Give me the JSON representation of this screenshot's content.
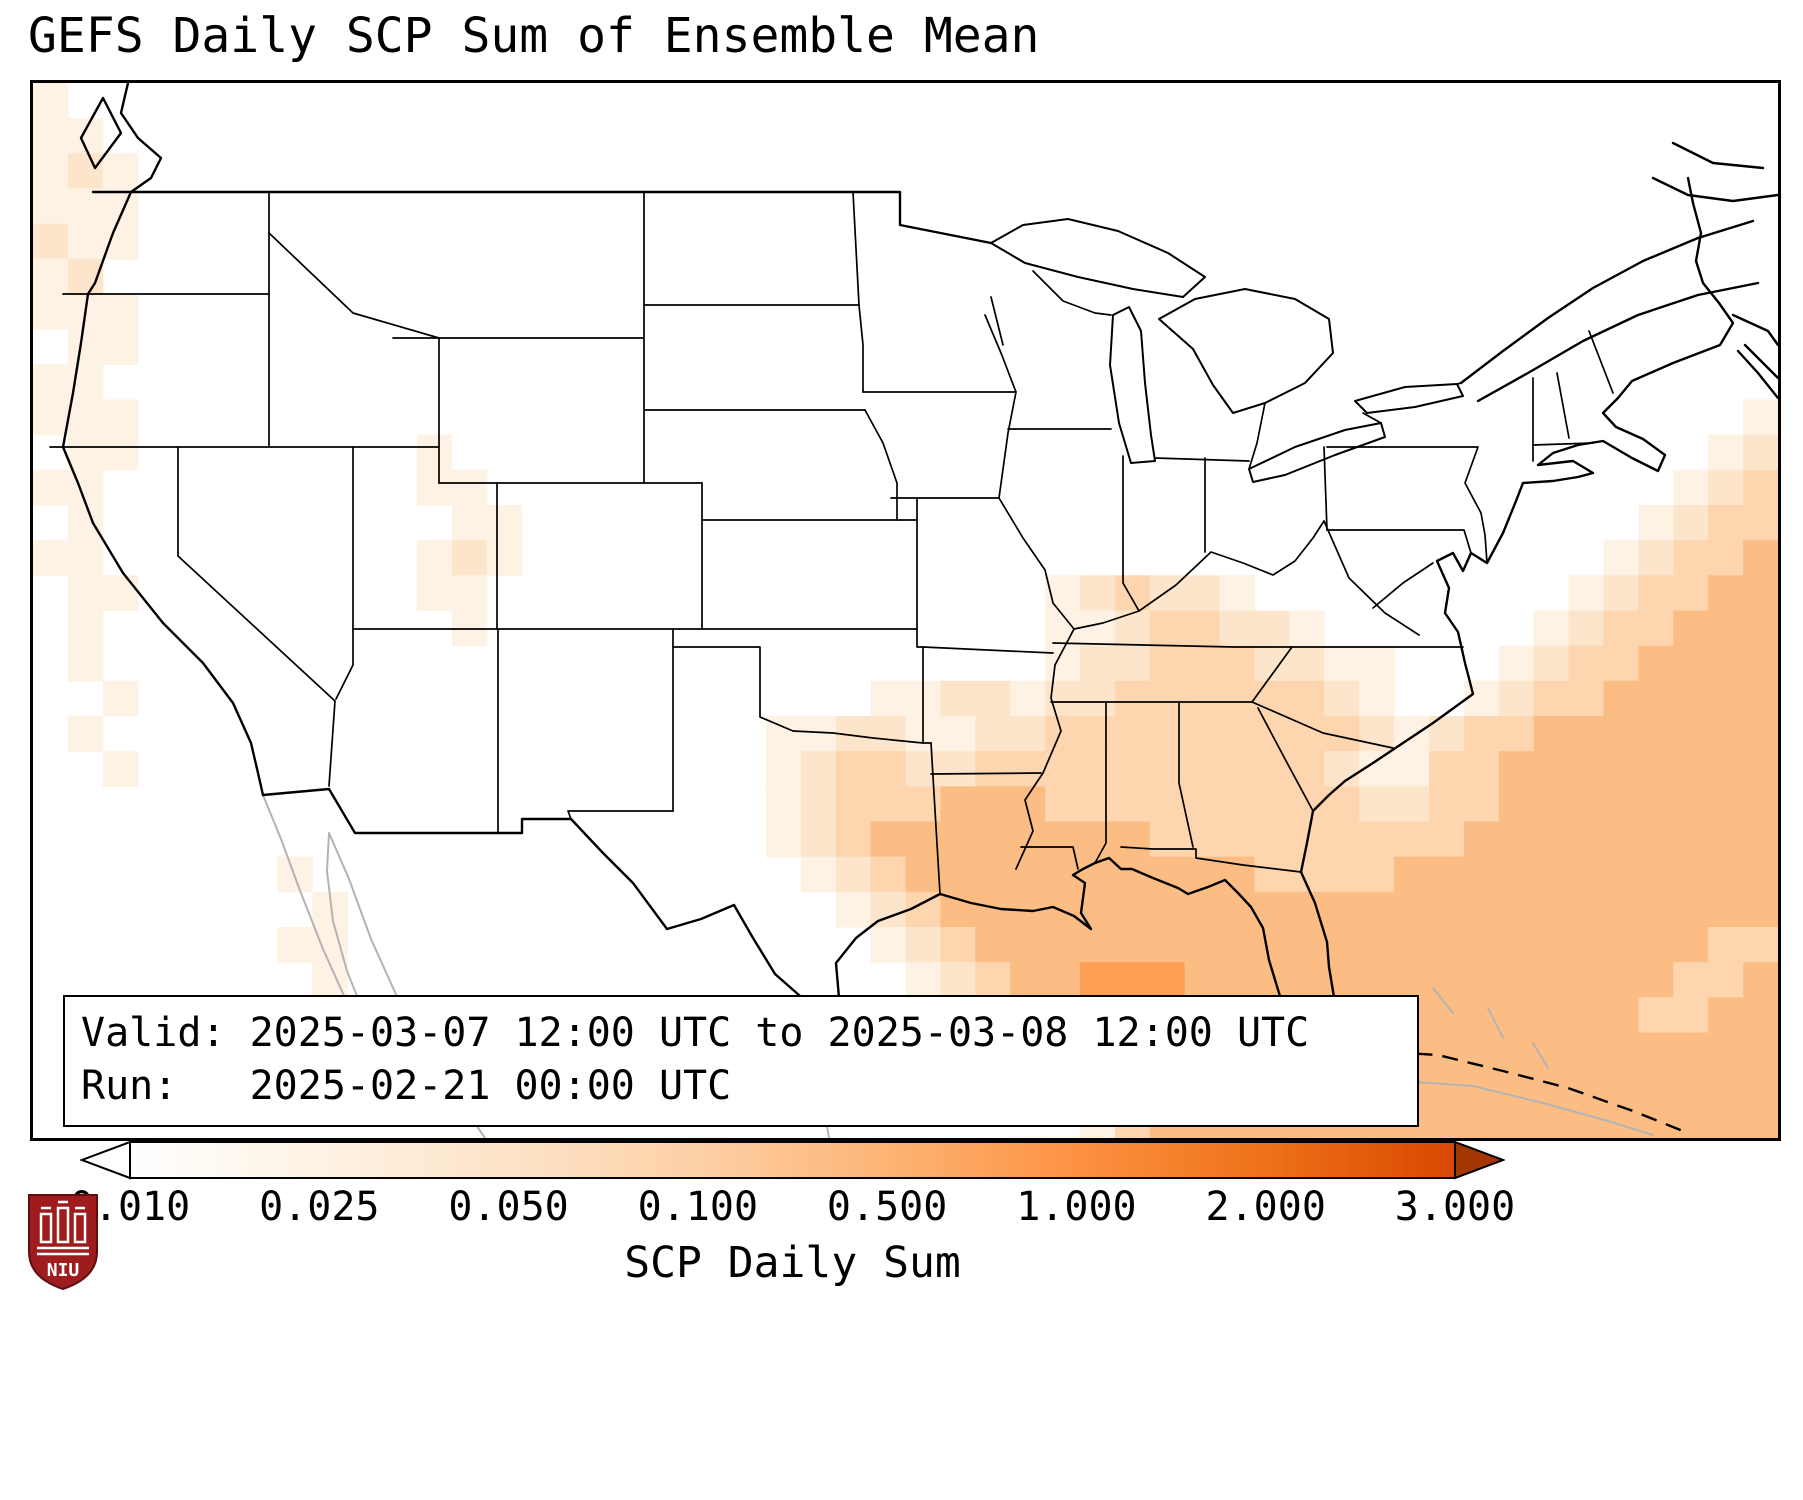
{
  "title": "GEFS Daily SCP Sum of Ensemble Mean",
  "info_box": {
    "valid_line": "Valid: 2025-03-07 12:00 UTC to 2025-03-08 12:00 UTC",
    "run_line": "Run:   2025-02-21 00:00 UTC"
  },
  "colorbar": {
    "label": "SCP Daily Sum",
    "ticks": [
      "0.010",
      "0.025",
      "0.050",
      "0.100",
      "0.500",
      "1.000",
      "2.000",
      "3.000"
    ],
    "gradient": [
      "#ffffff",
      "#fef2e3",
      "#fde3c8",
      "#fdd0a6",
      "#fdb475",
      "#fd9243",
      "#ee7119",
      "#d94801"
    ],
    "under_color": "#ffffff",
    "over_color": "#a33603"
  },
  "logo": {
    "text": "NIU",
    "bg_color": "#9e1b1e"
  },
  "chart_data": {
    "type": "heatmap",
    "title": "GEFS Daily SCP Sum of Ensemble Mean",
    "colorbar_label": "SCP Daily Sum",
    "valid": "2025-03-07 12:00 UTC to 2025-03-08 12:00 UTC",
    "run": "2025-02-21 00:00 UTC",
    "region": "CONUS and adjacent waters (Gulf of Mexico, western Atlantic)",
    "levels": [
      0.01,
      0.025,
      0.05,
      0.1,
      0.5,
      1.0,
      2.0,
      3.0
    ],
    "level_colors": [
      "#fef2e4",
      "#fde5cb",
      "#fdd5ae",
      "#fcbd85",
      "#fd9e55",
      "#f47d25",
      "#dd5103"
    ],
    "grid_legend": "Each digit is one grid cell (0 = below 0.01 / blank; digits 1-7 = SCP daily sum bins between successive levels). Rows run north to south, columns west to east.",
    "grid": [
      "10000000000000000000000000000000000000000000000000",
      "11000000000000000000000000000000000000000000000000",
      "12100000000000000000000000000000000000000000000000",
      "11100000000000000000000000000000000000000000000000",
      "21100000000000000000000000000000000000000000000000",
      "12000000000000000000000000000000000000000000000000",
      "11100000000000000000000000000000000000000000000000",
      "01100000000000000000000000000000000000000000000000",
      "11000000000000000000000000000000000000000000000000",
      "11100000000000000000000000000000000000000000000001",
      "01100000000100000000000000000000000000000000000012",
      "11000000000110000000000000000000000000000000000123",
      "01000000000011000000000000000000000000000000001233",
      "11000000000121000000000000000000000000000000012334",
      "01100000000110000000000000000123221000000000123344",
      "01000000000010000000000000000112332210000001233444",
      "01000000000000000000000000000122333221100012334444",
      "00100000000000000000000011221223333332100123344444",
      "01000000000000000000011221122333333333212334444444",
      "00100000000000000000012332233333333332113344444444",
      "00000000000000000000012333444333333333223344444444",
      "00000000000000000000012344444444333333333444444444",
      "00000001000000000000001234444444444333344444444444",
      "00000000100000000000000123444444444444444444444444",
      "00000001100000000000000012344444444444444444444433",
      "00000000100000000000000001234455544444444444444334",
      "00000000100000000000000000123556544444444444443344",
      "00000000010000000000000000012345554444444444444444",
      "00000000000000000000000000000134444444444444444444",
      "00000000000000000000000000000013444444444444444444"
    ]
  }
}
